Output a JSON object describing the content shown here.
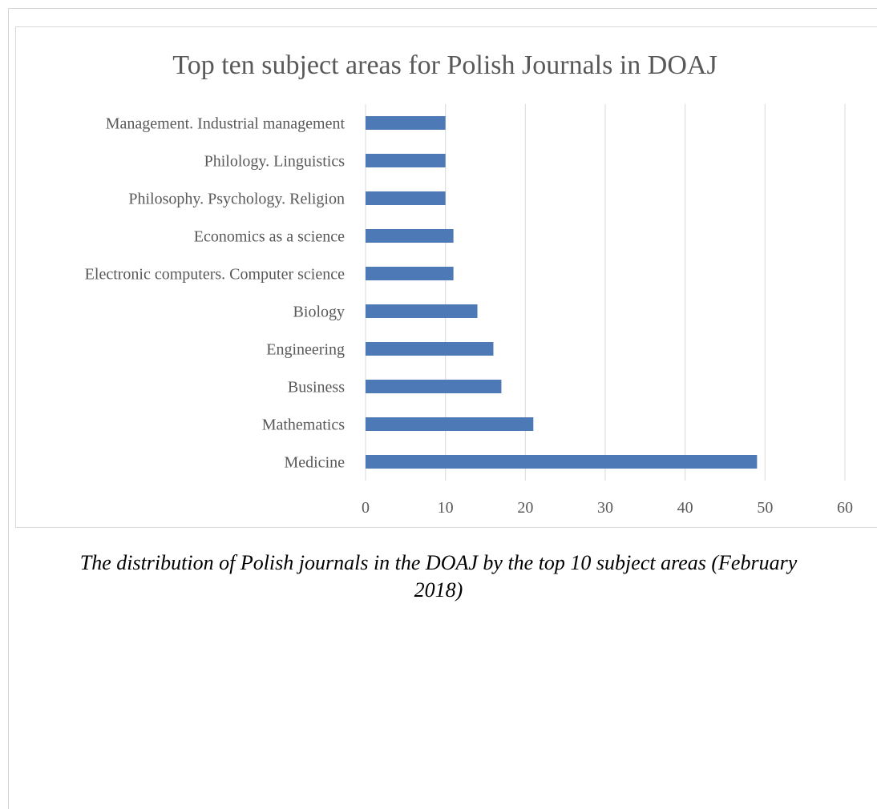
{
  "caption": {
    "line1": "The distribution of Polish journals in the DOAJ by the top 10 subject areas (February",
    "line2": "2018)"
  },
  "chart_data": {
    "type": "bar",
    "orientation": "horizontal",
    "title": "Top ten subject areas for Polish Journals in DOAJ",
    "categories": [
      "Management. Industrial management",
      "Philology. Linguistics",
      "Philosophy. Psychology. Religion",
      "Economics as a science",
      "Electronic computers. Computer science",
      "Biology",
      "Engineering",
      "Business",
      "Mathematics",
      "Medicine"
    ],
    "values": [
      10,
      10,
      10,
      11,
      11,
      14,
      16,
      17,
      21,
      49
    ],
    "xlim": [
      0,
      60
    ],
    "xticks": [
      0,
      10,
      20,
      30,
      40,
      50,
      60
    ],
    "xlabel": "",
    "ylabel": "",
    "grid": "vertical",
    "legend": "none",
    "bar_color": "#4e79b7",
    "grid_color": "#d9d9d9",
    "text_color": "#595959"
  }
}
